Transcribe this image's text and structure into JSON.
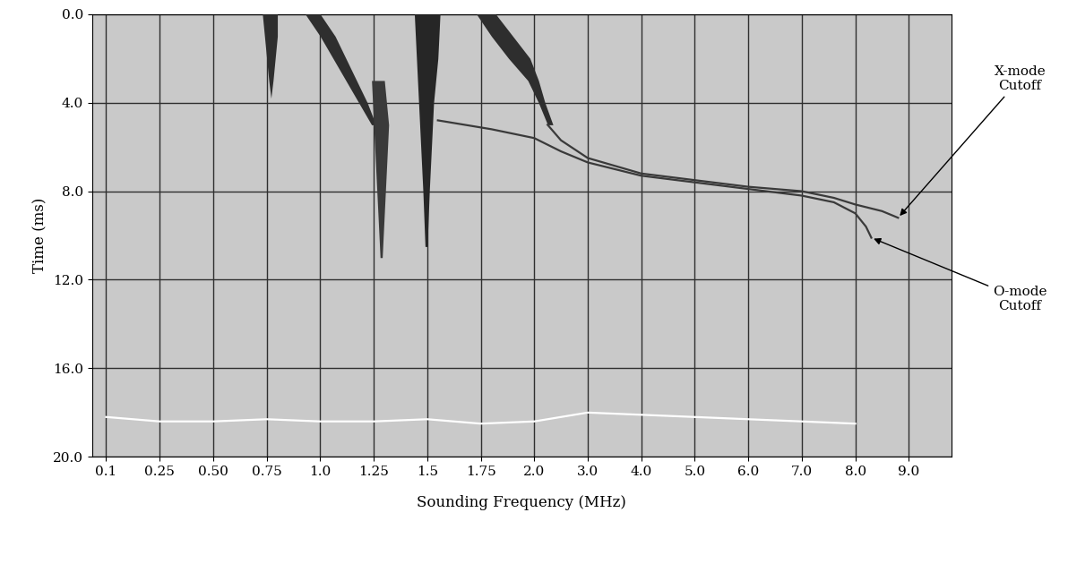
{
  "chart_data": {
    "type": "line",
    "x_label": "Sounding Frequency (MHz)",
    "y_label": "Time (ms)",
    "xlim": [
      0.06,
      9.8
    ],
    "xticks": [
      0.1,
      0.25,
      {
        "value": 0.5,
        "label": "0.50"
      },
      0.75,
      {
        "value": 1.0,
        "label": "1.0"
      },
      1.25,
      1.5,
      1.75,
      {
        "value": 2.0,
        "label": "2.0"
      },
      {
        "value": 3.0,
        "label": "3.0"
      },
      {
        "value": 4.0,
        "label": "4.0"
      },
      {
        "value": 5.0,
        "label": "5.0"
      },
      {
        "value": 6.0,
        "label": "6.0"
      },
      {
        "value": 7.0,
        "label": "7.0"
      },
      {
        "value": 8.0,
        "label": "8.0"
      },
      {
        "value": 9.0,
        "label": "9.0"
      }
    ],
    "ylim": [
      20,
      0
    ],
    "yticks": [
      {
        "value": 0,
        "label": "0.0"
      },
      {
        "value": 4,
        "label": "4.0"
      },
      {
        "value": 8,
        "label": "8.0"
      },
      {
        "value": 12,
        "label": "12.0"
      },
      {
        "value": 16,
        "label": "16.0"
      },
      {
        "value": 20,
        "label": "20.0"
      }
    ],
    "grid": true,
    "series": [
      {
        "type": "area",
        "color": "#2e2e2e",
        "values": [
          0,
          1,
          2,
          3,
          3.8
        ],
        "x": [
          0.73,
          0.74,
          0.75,
          0.76,
          0.77
        ],
        "x2": [
          0.8,
          0.8,
          0.79,
          0.78,
          0.77
        ]
      },
      {
        "type": "area",
        "color": "#2e2e2e",
        "values": [
          0,
          1,
          2,
          3,
          4,
          5
        ],
        "x": [
          0.93,
          1.0,
          1.06,
          1.12,
          1.18,
          1.24
        ],
        "x2": [
          1.0,
          1.07,
          1.12,
          1.17,
          1.22,
          1.26
        ]
      },
      {
        "type": "area",
        "color": "#3a3a3a",
        "values": [
          3,
          5,
          7,
          9,
          11
        ],
        "x": [
          1.24,
          1.25,
          1.26,
          1.27,
          1.28
        ],
        "x2": [
          1.3,
          1.32,
          1.31,
          1.3,
          1.29
        ]
      },
      {
        "type": "area",
        "color": "#262626",
        "values": [
          0,
          2,
          4,
          6,
          8,
          10.5
        ],
        "x": [
          1.44,
          1.45,
          1.46,
          1.47,
          1.48,
          1.49
        ],
        "x2": [
          1.56,
          1.55,
          1.53,
          1.52,
          1.51,
          1.5
        ]
      },
      {
        "type": "area",
        "color": "#2e2e2e",
        "values": [
          0,
          1,
          2,
          3,
          4,
          5
        ],
        "x": [
          1.73,
          1.8,
          1.88,
          1.97,
          2.08,
          2.25
        ],
        "x2": [
          1.82,
          1.9,
          1.98,
          2.08,
          2.2,
          2.35
        ]
      },
      {
        "type": "line",
        "color": "#3a3a3a",
        "line_style": "solid",
        "x": [
          1.55,
          1.8,
          2.0,
          2.5,
          3.0,
          4.0,
          5.0,
          6.0,
          7.0,
          7.6,
          8.0,
          8.2,
          8.3
        ],
        "values": [
          4.8,
          5.2,
          5.6,
          6.2,
          6.7,
          7.3,
          7.6,
          7.9,
          8.2,
          8.5,
          9.0,
          9.6,
          10.1
        ]
      },
      {
        "type": "line",
        "color": "#3a3a3a",
        "line_style": "solid",
        "x": [
          2.25,
          2.5,
          3.0,
          4.0,
          5.0,
          6.0,
          7.0,
          7.6,
          8.0,
          8.5,
          8.8
        ],
        "values": [
          5.0,
          5.7,
          6.5,
          7.2,
          7.5,
          7.8,
          8.0,
          8.3,
          8.6,
          8.9,
          9.2
        ]
      },
      {
        "type": "line",
        "color": "#ffffff",
        "line_style": "solid",
        "x": [
          0.1,
          0.25,
          0.5,
          0.75,
          1.0,
          1.25,
          1.5,
          1.75,
          2.0,
          3.0,
          4.0,
          5.0,
          6.0,
          7.0,
          8.0
        ],
        "values": [
          18.2,
          18.4,
          18.4,
          18.3,
          18.4,
          18.4,
          18.3,
          18.5,
          18.4,
          18.0,
          18.1,
          18.2,
          18.3,
          18.4,
          18.5
        ]
      }
    ],
    "annotations": [
      {
        "text": "X-mode\nCutoff",
        "x": 8.8,
        "y": 9.2
      },
      {
        "text": "O-mode\nCutoff",
        "x": 8.3,
        "y": 10.1
      }
    ]
  }
}
